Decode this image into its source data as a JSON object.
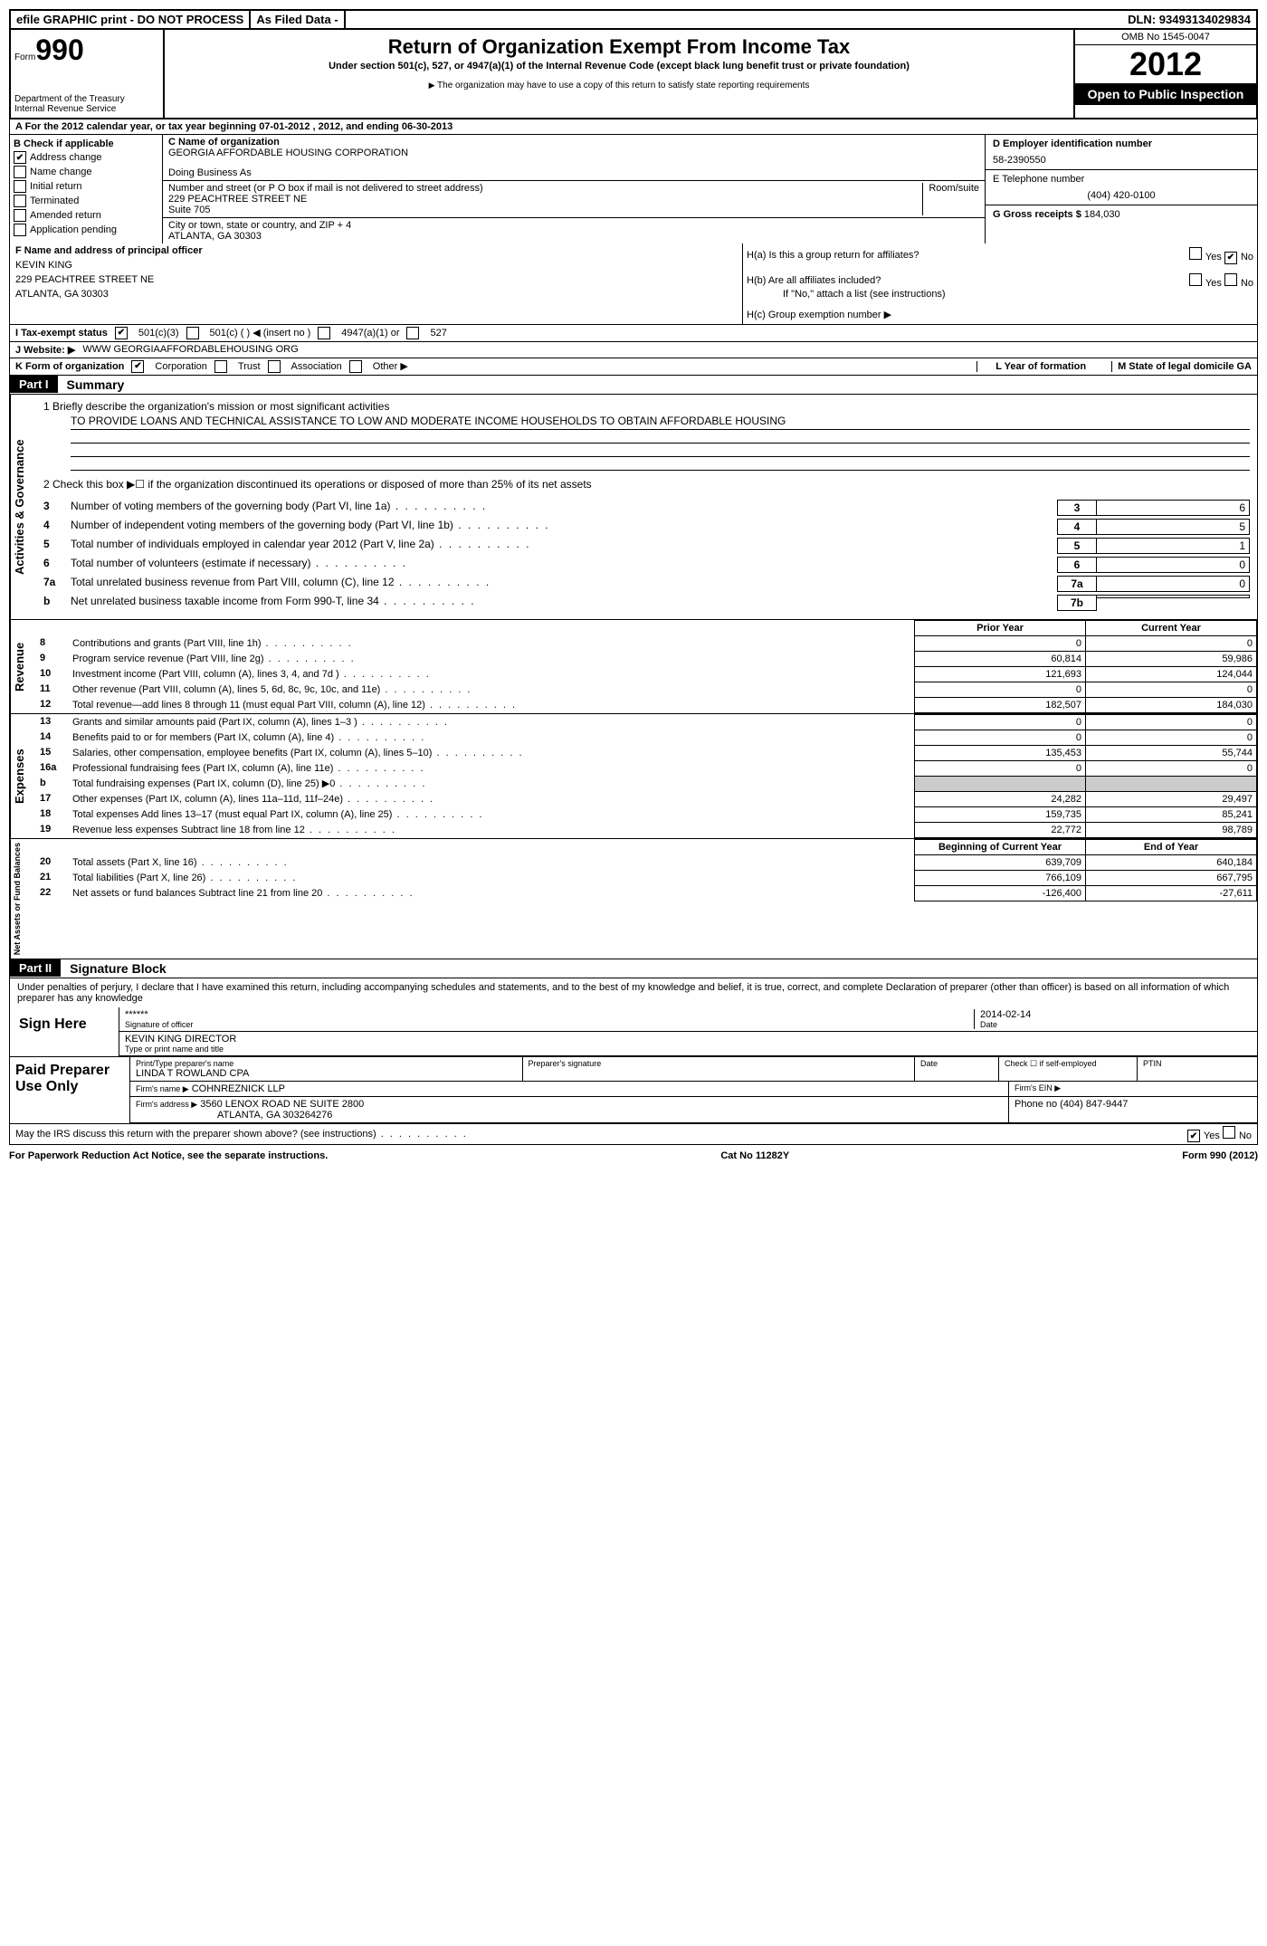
{
  "top_bar": {
    "efile": "efile GRAPHIC print - DO NOT PROCESS",
    "as_filed": "As Filed Data -",
    "dln_label": "DLN:",
    "dln": "93493134029834"
  },
  "header": {
    "form_label": "Form",
    "form_no": "990",
    "dept1": "Department of the Treasury",
    "dept2": "Internal Revenue Service",
    "title": "Return of Organization Exempt From Income Tax",
    "subtitle": "Under section 501(c), 527, or 4947(a)(1) of the Internal Revenue Code (except black lung benefit trust or private foundation)",
    "note": "The organization may have to use a copy of this return to satisfy state reporting requirements",
    "omb": "OMB No 1545-0047",
    "year": "2012",
    "open": "Open to Public Inspection"
  },
  "line_a": "A For the 2012 calendar year, or tax year beginning 07-01-2012     , 2012, and ending 06-30-2013",
  "section_b": {
    "hdr": "B Check if applicable",
    "items": [
      "Address change",
      "Name change",
      "Initial return",
      "Terminated",
      "Amended return",
      "Application pending"
    ],
    "checked_idx": 0
  },
  "section_c": {
    "label": "C Name of organization",
    "name": "GEORGIA AFFORDABLE HOUSING CORPORATION",
    "dba_label": "Doing Business As",
    "dba": "",
    "street_label": "Number and street (or P O  box if mail is not delivered to street address)",
    "room_label": "Room/suite",
    "street": "229 PEACHTREE STREET NE",
    "suite": "Suite 705",
    "city_label": "City or town, state or country, and ZIP + 4",
    "city": "ATLANTA, GA  30303"
  },
  "section_d": {
    "label": "D Employer identification number",
    "ein": "58-2390550"
  },
  "section_e": {
    "label": "E Telephone number",
    "phone": "(404) 420-0100"
  },
  "section_g": {
    "label": "G Gross receipts $",
    "val": "184,030"
  },
  "section_f": {
    "label": "F  Name and address of principal officer",
    "name": "KEVIN KING",
    "street": "229 PEACHTREE STREET NE",
    "city": "ATLANTA, GA  30303"
  },
  "section_h": {
    "ha": "H(a)  Is this a group return for affiliates?",
    "hb": "H(b)  Are all affiliates included?",
    "hb_note": "If \"No,\" attach a list  (see instructions)",
    "hc": "H(c)  Group exemption number ▶",
    "yes": "Yes",
    "no": "No"
  },
  "line_i": {
    "label": "I   Tax-exempt status",
    "opts": [
      "501(c)(3)",
      "501(c) (   ) ◀ (insert no )",
      "4947(a)(1) or",
      "527"
    ]
  },
  "line_j": {
    "label": "J  Website: ▶",
    "val": "WWW GEORGIAAFFORDABLEHOUSING ORG"
  },
  "line_k": {
    "label": "K Form of organization",
    "opts": [
      "Corporation",
      "Trust",
      "Association",
      "Other ▶"
    ],
    "l_label": "L Year of formation",
    "m_label": "M State of legal domicile",
    "m_val": "GA"
  },
  "part1": {
    "hdr": "Part I",
    "title": "Summary"
  },
  "summary_gov": {
    "side": "Activities & Governance",
    "l1_label": "1   Briefly describe the organization's mission or most significant activities",
    "l1_text": "TO PROVIDE LOANS AND TECHNICAL ASSISTANCE TO LOW AND MODERATE INCOME HOUSEHOLDS TO OBTAIN AFFORDABLE HOUSING",
    "l2": "2   Check this box ▶☐ if the organization discontinued its operations or disposed of more than 25% of its net assets",
    "rows": [
      {
        "n": "3",
        "t": "Number of voting members of the governing body (Part VI, line 1a)",
        "k": "3",
        "v": "6"
      },
      {
        "n": "4",
        "t": "Number of independent voting members of the governing body (Part VI, line 1b)",
        "k": "4",
        "v": "5"
      },
      {
        "n": "5",
        "t": "Total number of individuals employed in calendar year 2012 (Part V, line 2a)",
        "k": "5",
        "v": "1"
      },
      {
        "n": "6",
        "t": "Total number of volunteers (estimate if necessary)",
        "k": "6",
        "v": "0"
      },
      {
        "n": "7a",
        "t": "Total unrelated business revenue from Part VIII, column (C), line 12",
        "k": "7a",
        "v": "0"
      },
      {
        "n": "b",
        "t": "Net unrelated business taxable income from Form 990-T, line 34",
        "k": "7b",
        "v": ""
      }
    ]
  },
  "fin_headers": {
    "prior": "Prior Year",
    "current": "Current Year",
    "boy": "Beginning of Current Year",
    "eoy": "End of Year"
  },
  "revenue": {
    "side": "Revenue",
    "rows": [
      {
        "n": "8",
        "t": "Contributions and grants (Part VIII, line 1h)",
        "p": "0",
        "c": "0"
      },
      {
        "n": "9",
        "t": "Program service revenue (Part VIII, line 2g)",
        "p": "60,814",
        "c": "59,986"
      },
      {
        "n": "10",
        "t": "Investment income (Part VIII, column (A), lines 3, 4, and 7d )",
        "p": "121,693",
        "c": "124,044"
      },
      {
        "n": "11",
        "t": "Other revenue (Part VIII, column (A), lines 5, 6d, 8c, 9c, 10c, and 11e)",
        "p": "0",
        "c": "0"
      },
      {
        "n": "12",
        "t": "Total revenue—add lines 8 through 11 (must equal Part VIII, column (A), line 12)",
        "p": "182,507",
        "c": "184,030"
      }
    ]
  },
  "expenses": {
    "side": "Expenses",
    "rows": [
      {
        "n": "13",
        "t": "Grants and similar amounts paid (Part IX, column (A), lines 1–3 )",
        "p": "0",
        "c": "0"
      },
      {
        "n": "14",
        "t": "Benefits paid to or for members (Part IX, column (A), line 4)",
        "p": "0",
        "c": "0"
      },
      {
        "n": "15",
        "t": "Salaries, other compensation, employee benefits (Part IX, column (A), lines 5–10)",
        "p": "135,453",
        "c": "55,744"
      },
      {
        "n": "16a",
        "t": "Professional fundraising fees (Part IX, column (A), line 11e)",
        "p": "0",
        "c": "0"
      },
      {
        "n": "b",
        "t": "Total fundraising expenses (Part IX, column (D), line 25)  ▶0",
        "p": "",
        "c": "",
        "grey": true
      },
      {
        "n": "17",
        "t": "Other expenses (Part IX, column (A), lines 11a–11d, 11f–24e)",
        "p": "24,282",
        "c": "29,497"
      },
      {
        "n": "18",
        "t": "Total expenses  Add lines 13–17 (must equal Part IX, column (A), line 25)",
        "p": "159,735",
        "c": "85,241"
      },
      {
        "n": "19",
        "t": "Revenue less expenses  Subtract line 18 from line 12",
        "p": "22,772",
        "c": "98,789"
      }
    ]
  },
  "netassets": {
    "side": "Net Assets or Fund Balances",
    "rows": [
      {
        "n": "20",
        "t": "Total assets (Part X, line 16)",
        "p": "639,709",
        "c": "640,184"
      },
      {
        "n": "21",
        "t": "Total liabilities (Part X, line 26)",
        "p": "766,109",
        "c": "667,795"
      },
      {
        "n": "22",
        "t": "Net assets or fund balances  Subtract line 21 from line 20",
        "p": "-126,400",
        "c": "-27,611"
      }
    ]
  },
  "part2": {
    "hdr": "Part II",
    "title": "Signature Block"
  },
  "sig": {
    "decl": "Under penalties of perjury, I declare that I have examined this return, including accompanying schedules and statements, and to the best of my knowledge and belief, it is true, correct, and complete  Declaration of preparer (other than officer) is based on all information of which preparer has any knowledge",
    "sign_here": "Sign Here",
    "stars": "******",
    "sig_label": "Signature of officer",
    "date_label": "Date",
    "date": "2014-02-14",
    "name": "KEVIN KING DIRECTOR",
    "name_label": "Type or print name and title"
  },
  "paid": {
    "hdr": "Paid Preparer Use Only",
    "r1": {
      "a": "Print/Type preparer's name",
      "a_val": "LINDA T ROWLAND CPA",
      "b": "Preparer's signature",
      "c": "Date",
      "d": "Check ☐ if self-employed",
      "e": "PTIN"
    },
    "r2": {
      "a": "Firm's name   ▶",
      "a_val": "COHNREZNICK LLP",
      "b": "Firm's EIN ▶"
    },
    "r3": {
      "a": "Firm's address ▶",
      "a_val": "3560 LENOX ROAD NE SUITE 2800",
      "a_val2": "ATLANTA, GA  303264276",
      "b": "Phone no  (404) 847-9447"
    },
    "discuss": "May the IRS discuss this return with the preparer shown above? (see instructions)",
    "yes": "Yes",
    "no": "No"
  },
  "footer": {
    "left": "For Paperwork Reduction Act Notice, see the separate instructions.",
    "mid": "Cat No  11282Y",
    "right": "Form 990 (2012)"
  }
}
